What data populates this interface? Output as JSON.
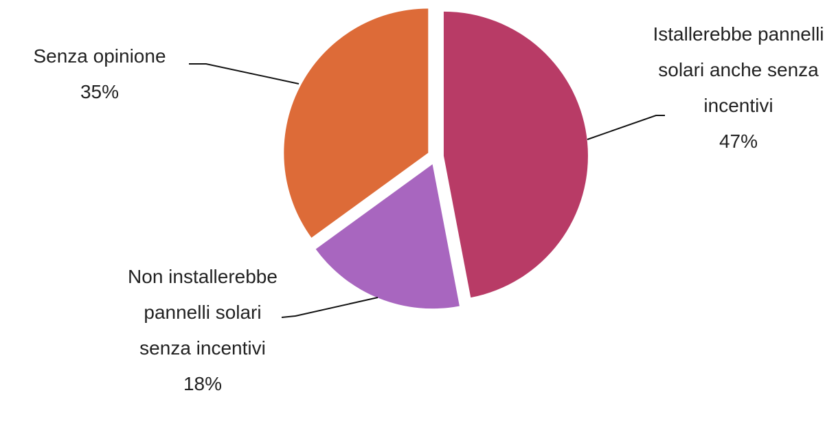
{
  "chart_data": {
    "type": "pie",
    "categories": [
      "Istallerebbe pannelli solari anche senza incentivi",
      "Non installerebbe pannelli solari senza incentivi",
      "Senza opinione"
    ],
    "values": [
      47,
      18,
      35
    ],
    "value_labels": [
      "47%",
      "18%",
      "35%"
    ],
    "colors": [
      "#b83b66",
      "#a866bf",
      "#dd6b38"
    ]
  }
}
